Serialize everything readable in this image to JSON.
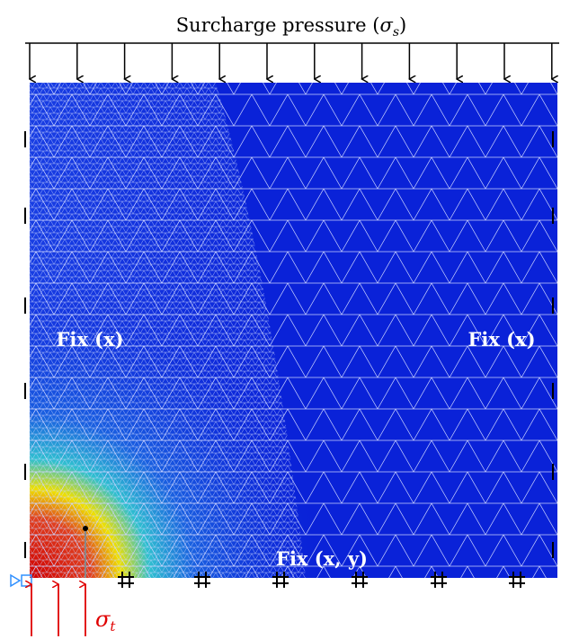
{
  "title": {
    "text": "Surcharge pressure (",
    "symbol": "σ",
    "subscript": "s",
    "close": ")"
  },
  "labels": {
    "left": "Fix (x)",
    "right": "Fix (x)",
    "bottom": "Fix (x, y)"
  },
  "load": {
    "symbol": "σ",
    "subscript": "t"
  }
}
